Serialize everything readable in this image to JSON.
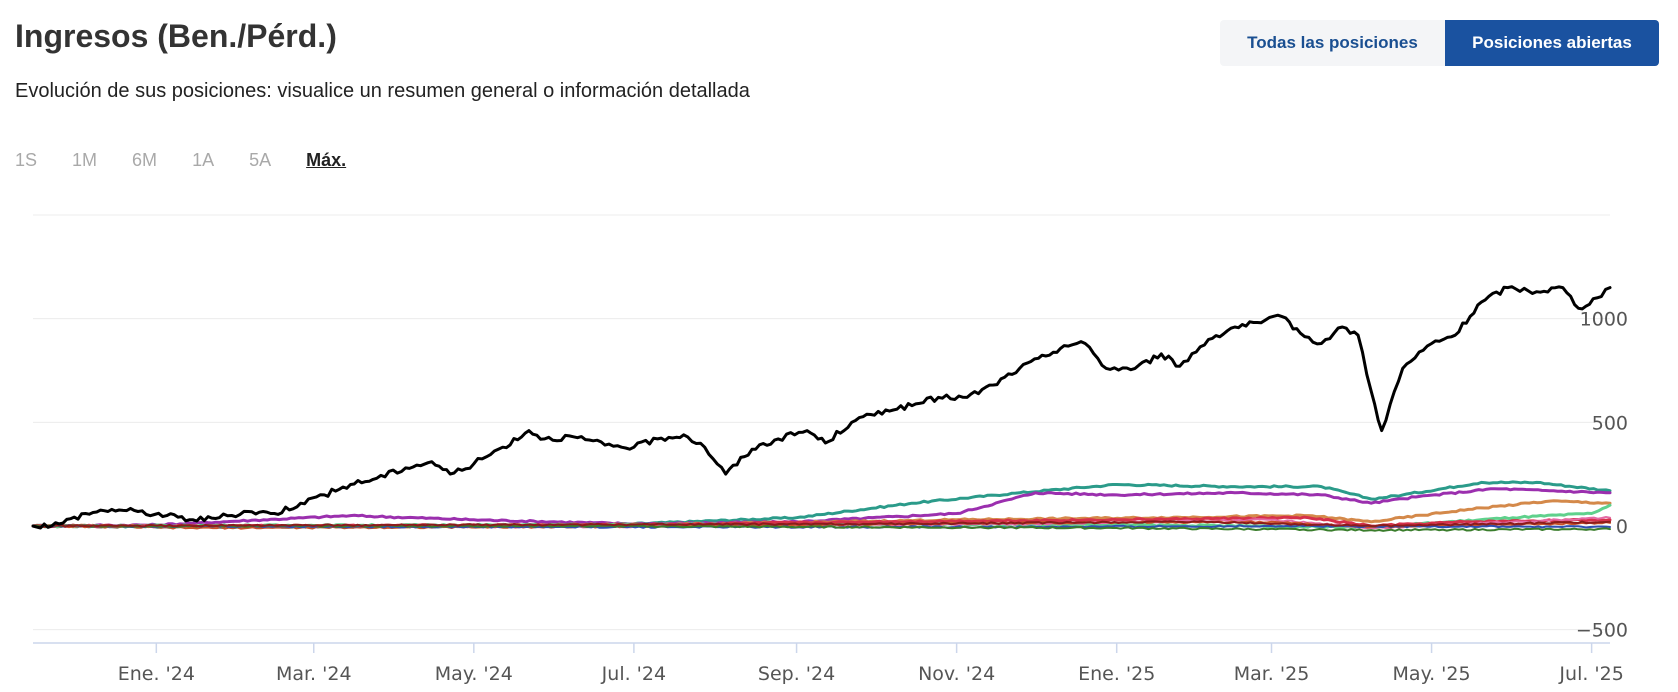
{
  "header": {
    "title": "Ingresos (Ben./Pérd.)",
    "subtitle": "Evolución de sus posiciones: visualice un resumen general o información detallada"
  },
  "position_toggle": {
    "options": [
      "Todas las posiciones",
      "Posiciones abiertas"
    ],
    "selected": "Posiciones abiertas"
  },
  "range_tabs": {
    "items": [
      "1S",
      "1M",
      "6M",
      "1A",
      "5A",
      "Máx."
    ],
    "selected": "Máx."
  },
  "colors": {
    "accent": "#1a52a0",
    "total_line": "#000000"
  },
  "chart_data": {
    "type": "line",
    "x_type": "date",
    "xlim": [
      "2023-11-15",
      "2025-07-08"
    ],
    "ylim": [
      -550,
      1500
    ],
    "y_ticks": [
      -500,
      0,
      500,
      1000
    ],
    "y_tick_labels": [
      "−500",
      "0",
      "500",
      "1000"
    ],
    "x_ticks": [
      "2024-01-01",
      "2024-03-01",
      "2024-05-01",
      "2024-07-01",
      "2024-09-01",
      "2024-11-01",
      "2025-01-01",
      "2025-03-01",
      "2025-05-01",
      "2025-07-01"
    ],
    "x_tick_labels": [
      "Ene. '24",
      "Mar. '24",
      "May. '24",
      "Jul. '24",
      "Sep. '24",
      "Nov. '24",
      "Ene. '25",
      "Mar. '25",
      "May. '25",
      "Jul. '25"
    ],
    "grid": true,
    "y_axis_side": "right",
    "series": [
      {
        "color": "#000000",
        "width": 3,
        "points": [
          [
            "2023-11-15",
            0
          ],
          [
            "2023-11-25",
            10
          ],
          [
            "2023-12-05",
            60
          ],
          [
            "2023-12-15",
            80
          ],
          [
            "2023-12-25",
            70
          ],
          [
            "2024-01-05",
            50
          ],
          [
            "2024-01-15",
            30
          ],
          [
            "2024-01-25",
            40
          ],
          [
            "2024-02-05",
            70
          ],
          [
            "2024-02-15",
            60
          ],
          [
            "2024-02-25",
            110
          ],
          [
            "2024-03-05",
            150
          ],
          [
            "2024-03-15",
            200
          ],
          [
            "2024-03-25",
            230
          ],
          [
            "2024-04-05",
            280
          ],
          [
            "2024-04-15",
            310
          ],
          [
            "2024-04-22",
            250
          ],
          [
            "2024-05-01",
            300
          ],
          [
            "2024-05-12",
            380
          ],
          [
            "2024-05-22",
            460
          ],
          [
            "2024-05-28",
            420
          ],
          [
            "2024-06-08",
            430
          ],
          [
            "2024-06-20",
            390
          ],
          [
            "2024-07-01",
            380
          ],
          [
            "2024-07-10",
            420
          ],
          [
            "2024-07-20",
            440
          ],
          [
            "2024-07-28",
            380
          ],
          [
            "2024-08-05",
            250
          ],
          [
            "2024-08-15",
            370
          ],
          [
            "2024-08-25",
            420
          ],
          [
            "2024-09-05",
            460
          ],
          [
            "2024-09-12",
            400
          ],
          [
            "2024-09-22",
            500
          ],
          [
            "2024-10-05",
            560
          ],
          [
            "2024-10-15",
            580
          ],
          [
            "2024-10-25",
            620
          ],
          [
            "2024-11-05",
            620
          ],
          [
            "2024-11-15",
            680
          ],
          [
            "2024-11-25",
            760
          ],
          [
            "2024-12-05",
            820
          ],
          [
            "2024-12-12",
            870
          ],
          [
            "2024-12-20",
            880
          ],
          [
            "2024-12-28",
            760
          ],
          [
            "2025-01-08",
            760
          ],
          [
            "2025-01-18",
            830
          ],
          [
            "2025-01-25",
            770
          ],
          [
            "2025-02-05",
            900
          ],
          [
            "2025-02-15",
            960
          ],
          [
            "2025-02-25",
            980
          ],
          [
            "2025-03-05",
            1010
          ],
          [
            "2025-03-12",
            930
          ],
          [
            "2025-03-20",
            880
          ],
          [
            "2025-03-28",
            960
          ],
          [
            "2025-04-03",
            920
          ],
          [
            "2025-04-08",
            650
          ],
          [
            "2025-04-12",
            460
          ],
          [
            "2025-04-20",
            760
          ],
          [
            "2025-05-01",
            880
          ],
          [
            "2025-05-10",
            920
          ],
          [
            "2025-05-20",
            1080
          ],
          [
            "2025-05-30",
            1150
          ],
          [
            "2025-06-10",
            1130
          ],
          [
            "2025-06-20",
            1150
          ],
          [
            "2025-06-26",
            1050
          ],
          [
            "2025-07-03",
            1100
          ],
          [
            "2025-07-08",
            1150
          ]
        ]
      },
      {
        "color": "#2b9b8a",
        "width": 3,
        "points": [
          [
            "2023-11-15",
            0
          ],
          [
            "2024-02-01",
            -5
          ],
          [
            "2024-05-01",
            0
          ],
          [
            "2024-07-01",
            10
          ],
          [
            "2024-09-01",
            40
          ],
          [
            "2024-10-15",
            110
          ],
          [
            "2024-11-25",
            160
          ],
          [
            "2025-01-01",
            200
          ],
          [
            "2025-02-15",
            190
          ],
          [
            "2025-03-20",
            190
          ],
          [
            "2025-04-08",
            130
          ],
          [
            "2025-04-20",
            150
          ],
          [
            "2025-05-20",
            210
          ],
          [
            "2025-06-10",
            210
          ],
          [
            "2025-07-08",
            170
          ]
        ]
      },
      {
        "color": "#9b2fae",
        "width": 3,
        "points": [
          [
            "2023-11-15",
            0
          ],
          [
            "2024-01-01",
            5
          ],
          [
            "2024-03-15",
            50
          ],
          [
            "2024-05-01",
            30
          ],
          [
            "2024-07-01",
            10
          ],
          [
            "2024-09-01",
            20
          ],
          [
            "2024-11-01",
            60
          ],
          [
            "2024-12-01",
            160
          ],
          [
            "2025-01-01",
            150
          ],
          [
            "2025-02-15",
            160
          ],
          [
            "2025-03-20",
            150
          ],
          [
            "2025-04-08",
            110
          ],
          [
            "2025-04-25",
            140
          ],
          [
            "2025-05-25",
            180
          ],
          [
            "2025-06-15",
            170
          ],
          [
            "2025-07-08",
            160
          ]
        ]
      },
      {
        "color": "#d4894a",
        "width": 3,
        "points": [
          [
            "2023-11-15",
            0
          ],
          [
            "2024-04-01",
            0
          ],
          [
            "2024-08-01",
            10
          ],
          [
            "2024-11-01",
            30
          ],
          [
            "2025-01-15",
            40
          ],
          [
            "2025-03-15",
            50
          ],
          [
            "2025-04-08",
            20
          ],
          [
            "2025-05-15",
            80
          ],
          [
            "2025-06-15",
            120
          ],
          [
            "2025-07-08",
            110
          ]
        ]
      },
      {
        "color": "#5fd18c",
        "width": 3,
        "points": [
          [
            "2023-11-15",
            0
          ],
          [
            "2024-06-01",
            5
          ],
          [
            "2024-10-01",
            10
          ],
          [
            "2025-01-01",
            5
          ],
          [
            "2025-04-08",
            -5
          ],
          [
            "2025-06-01",
            40
          ],
          [
            "2025-07-01",
            60
          ],
          [
            "2025-07-08",
            100
          ]
        ]
      },
      {
        "color": "#d6304a",
        "width": 3,
        "points": [
          [
            "2023-11-15",
            0
          ],
          [
            "2024-03-01",
            0
          ],
          [
            "2024-07-01",
            5
          ],
          [
            "2024-10-01",
            20
          ],
          [
            "2025-01-01",
            30
          ],
          [
            "2025-03-15",
            40
          ],
          [
            "2025-04-08",
            0
          ],
          [
            "2025-05-15",
            20
          ],
          [
            "2025-07-08",
            30
          ]
        ]
      },
      {
        "color": "#e46aa5",
        "width": 2,
        "points": [
          [
            "2023-11-15",
            0
          ],
          [
            "2024-06-01",
            -5
          ],
          [
            "2024-12-01",
            10
          ],
          [
            "2025-03-01",
            30
          ],
          [
            "2025-04-08",
            -10
          ],
          [
            "2025-06-01",
            20
          ],
          [
            "2025-07-08",
            40
          ]
        ]
      },
      {
        "color": "#c9542a",
        "width": 2,
        "points": [
          [
            "2023-11-15",
            0
          ],
          [
            "2024-01-15",
            -10
          ],
          [
            "2024-06-01",
            -5
          ],
          [
            "2024-12-01",
            15
          ],
          [
            "2025-03-01",
            20
          ],
          [
            "2025-04-08",
            -5
          ],
          [
            "2025-07-08",
            15
          ]
        ]
      },
      {
        "color": "#2e4fb0",
        "width": 2,
        "points": [
          [
            "2023-11-15",
            0
          ],
          [
            "2024-06-01",
            -5
          ],
          [
            "2024-12-01",
            -5
          ],
          [
            "2025-03-01",
            0
          ],
          [
            "2025-07-08",
            -5
          ]
        ]
      },
      {
        "color": "#3a7d2c",
        "width": 2,
        "points": [
          [
            "2023-11-15",
            0
          ],
          [
            "2024-06-01",
            0
          ],
          [
            "2025-01-01",
            -10
          ],
          [
            "2025-04-08",
            -20
          ],
          [
            "2025-07-08",
            -15
          ]
        ]
      },
      {
        "color": "#8b1c1c",
        "width": 2,
        "points": [
          [
            "2023-11-15",
            0
          ],
          [
            "2024-05-01",
            5
          ],
          [
            "2024-10-01",
            10
          ],
          [
            "2025-02-01",
            20
          ],
          [
            "2025-04-08",
            0
          ],
          [
            "2025-07-08",
            20
          ]
        ]
      }
    ]
  }
}
